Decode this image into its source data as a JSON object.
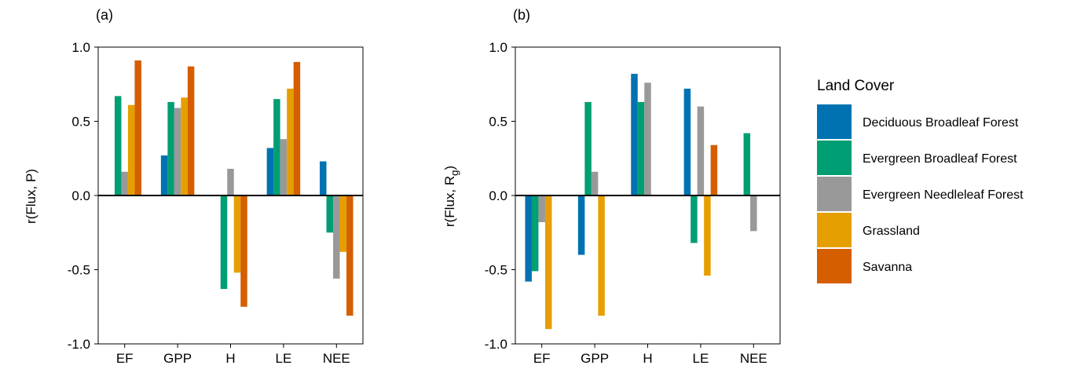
{
  "chart_data": [
    {
      "type": "bar",
      "panel_label": "(a)",
      "ylabel": "r(Flux, P)",
      "ylim": [
        -1.0,
        1.0
      ],
      "yticks": [
        -1.0,
        -0.5,
        0.0,
        0.5,
        1.0
      ],
      "ytick_labels": [
        "-1.0",
        "-0.5",
        "0.0",
        "0.5",
        "1.0"
      ],
      "categories": [
        "EF",
        "GPP",
        "H",
        "LE",
        "NEE"
      ],
      "series": [
        {
          "name": "Deciduous Broadleaf Forest",
          "values": [
            null,
            0.27,
            null,
            0.32,
            0.23
          ]
        },
        {
          "name": "Evergreen Broadleaf Forest",
          "values": [
            0.67,
            0.63,
            -0.63,
            0.65,
            -0.25
          ]
        },
        {
          "name": "Evergreen Needleleaf Forest",
          "values": [
            0.16,
            0.59,
            0.18,
            0.38,
            -0.56
          ]
        },
        {
          "name": "Grassland",
          "values": [
            0.61,
            0.66,
            -0.52,
            0.72,
            -0.38
          ]
        },
        {
          "name": "Savanna",
          "values": [
            0.91,
            0.87,
            -0.75,
            0.9,
            -0.81
          ]
        }
      ]
    },
    {
      "type": "bar",
      "panel_label": "(b)",
      "ylabel": "r(Flux, R",
      "ylabel_sub": "g",
      "ylabel_close": ")",
      "ylim": [
        -1.0,
        1.0
      ],
      "yticks": [
        -1.0,
        -0.5,
        0.0,
        0.5,
        1.0
      ],
      "ytick_labels": [
        "-1.0",
        "-0.5",
        "0.0",
        "0.5",
        "1.0"
      ],
      "categories": [
        "EF",
        "GPP",
        "H",
        "LE",
        "NEE"
      ],
      "series": [
        {
          "name": "Deciduous Broadleaf Forest",
          "values": [
            -0.58,
            -0.4,
            0.82,
            0.72,
            null
          ]
        },
        {
          "name": "Evergreen Broadleaf Forest",
          "values": [
            -0.51,
            0.63,
            0.63,
            -0.32,
            0.42
          ]
        },
        {
          "name": "Evergreen Needleleaf Forest",
          "values": [
            -0.18,
            0.16,
            0.76,
            0.6,
            -0.24
          ]
        },
        {
          "name": "Grassland",
          "values": [
            -0.9,
            -0.81,
            null,
            -0.54,
            null
          ]
        },
        {
          "name": "Savanna",
          "values": [
            null,
            null,
            null,
            0.34,
            null
          ]
        }
      ]
    }
  ],
  "legend": {
    "title": "Land Cover",
    "items": [
      {
        "label": "Deciduous Broadleaf Forest",
        "color": "#0072B2"
      },
      {
        "label": "Evergreen Broadleaf Forest",
        "color": "#009E73"
      },
      {
        "label": "Evergreen Needleleaf Forest",
        "color": "#999999"
      },
      {
        "label": "Grassland",
        "color": "#E69F00"
      },
      {
        "label": "Savanna",
        "color": "#D55E00"
      }
    ]
  }
}
